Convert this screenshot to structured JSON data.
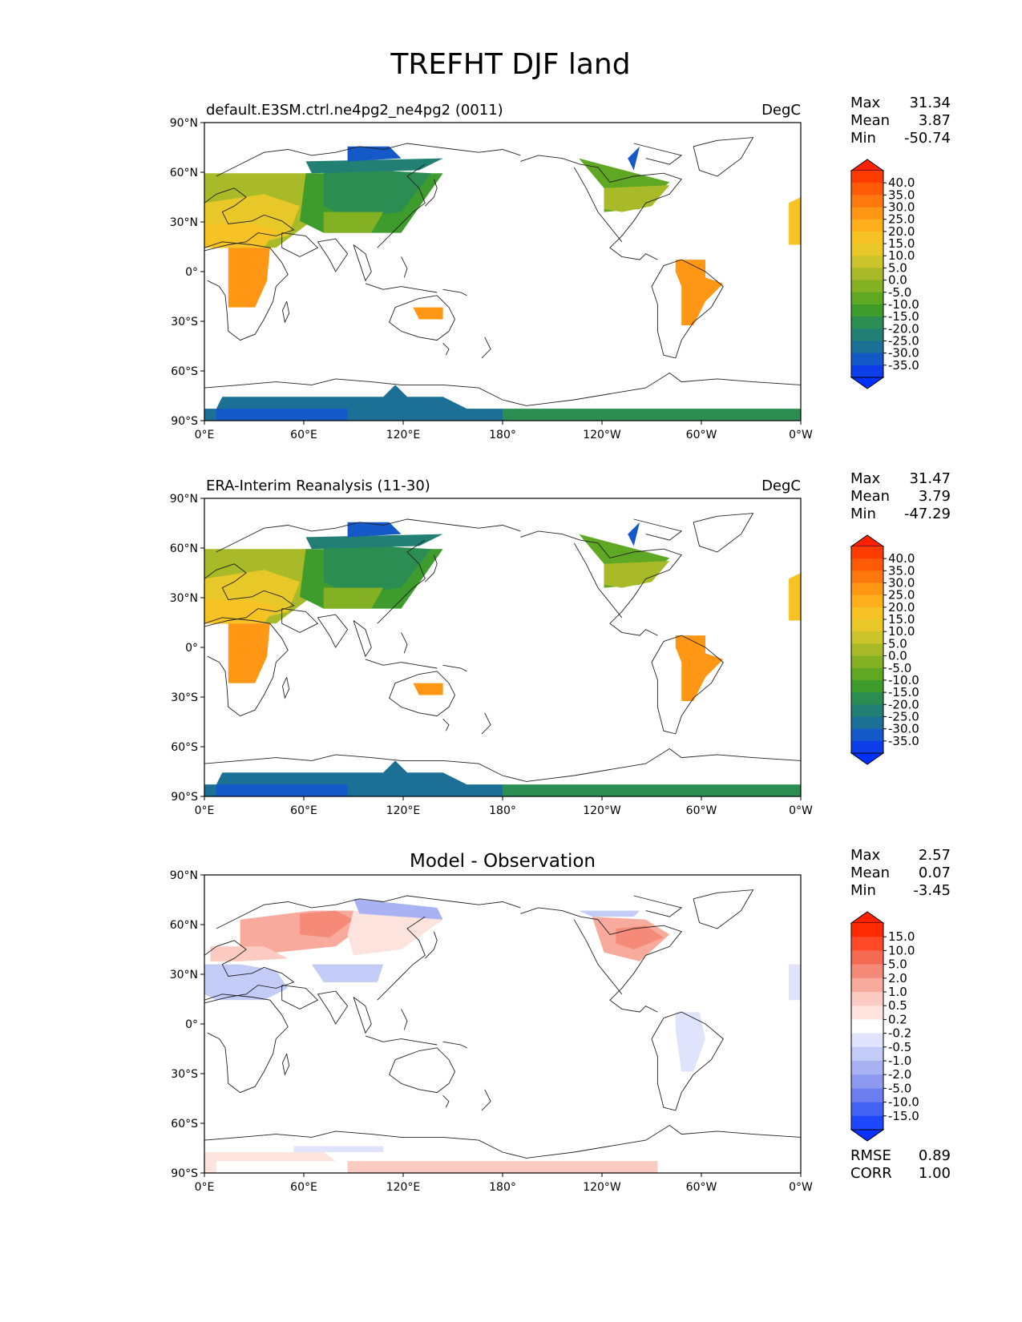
{
  "title": "TREFHT DJF land",
  "lat_ticks": [
    "90°N",
    "60°N",
    "30°N",
    "0°",
    "30°S",
    "60°S",
    "90°S"
  ],
  "lon_ticks": [
    "0°E",
    "60°E",
    "120°E",
    "180°",
    "120°W",
    "60°W",
    "0°W"
  ],
  "panels": [
    {
      "id": "model",
      "left_title": "default.E3SM.ctrl.ne4pg2_ne4pg2 (0011)",
      "center_title": "",
      "units": "DegC",
      "stats": [
        [
          "Max",
          "31.34"
        ],
        [
          "Mean",
          "3.87"
        ],
        [
          "Min",
          "-50.74"
        ]
      ],
      "colorbar": "abs",
      "extra_stats": []
    },
    {
      "id": "obs",
      "left_title": "ERA-Interim Reanalysis (11-30)",
      "center_title": "",
      "units": "DegC",
      "stats": [
        [
          "Max",
          "31.47"
        ],
        [
          "Mean",
          "3.79"
        ],
        [
          "Min",
          "-47.29"
        ]
      ],
      "colorbar": "abs",
      "extra_stats": []
    },
    {
      "id": "diff",
      "left_title": "",
      "center_title": "Model - Observation",
      "units": "",
      "stats": [
        [
          "Max",
          "2.57"
        ],
        [
          "Mean",
          "0.07"
        ],
        [
          "Min",
          "-3.45"
        ]
      ],
      "colorbar": "diff",
      "extra_stats": [
        [
          "RMSE",
          "0.89"
        ],
        [
          "CORR",
          "1.00"
        ]
      ]
    }
  ],
  "colorbars": {
    "abs": {
      "labels": [
        "40.0",
        "35.0",
        "30.0",
        "25.0",
        "20.0",
        "15.0",
        "10.0",
        "5.0",
        "0.0",
        "-5.0",
        "-10.0",
        "-15.0",
        "-20.0",
        "-25.0",
        "-30.0",
        "-35.0"
      ],
      "colors": [
        "#ff3c00",
        "#ff5a08",
        "#ff780e",
        "#ff9614",
        "#ffae1c",
        "#f7c224",
        "#e8c829",
        "#cbc42a",
        "#a8ba28",
        "#84b124",
        "#5fa824",
        "#3d9c2c",
        "#2c8d52",
        "#227f73",
        "#1c6f95",
        "#1559c8",
        "#0d3ee8"
      ],
      "top_arrow": "#ff2200",
      "bottom_arrow": "#0030ff"
    },
    "diff": {
      "labels": [
        "15.0",
        "10.0",
        "5.0",
        "2.0",
        "1.0",
        "0.5",
        "0.2",
        "-0.2",
        "-0.5",
        "-1.0",
        "-2.0",
        "-5.0",
        "-10.0",
        "-15.0"
      ],
      "colors": [
        "#ff2a00",
        "#ff4a2a",
        "#f56a52",
        "#f58a78",
        "#f8ab9c",
        "#fbcbc1",
        "#fde3dd",
        "#ffffff",
        "#dfe3fb",
        "#c3cbf7",
        "#a9b3f4",
        "#8d9af0",
        "#6d7ff0",
        "#4463f3",
        "#1d48ff"
      ],
      "top_arrow": "#ff2200",
      "bottom_arrow": "#0a30ff"
    }
  },
  "colors": {
    "coastline": "#222222",
    "frame": "#000000"
  }
}
